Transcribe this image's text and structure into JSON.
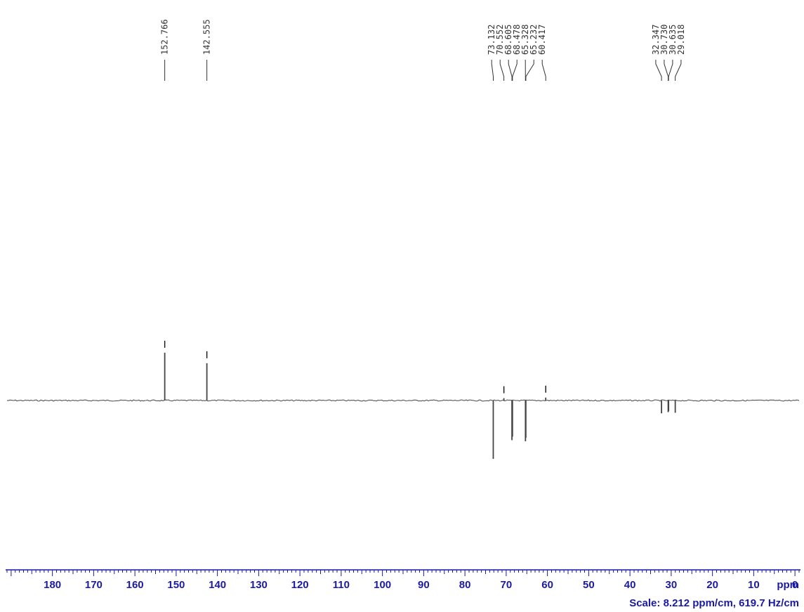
{
  "colors": {
    "spectrum": "#444444",
    "axis": "#1a1aa6",
    "labels": "#333333"
  },
  "chart_data": {
    "type": "line",
    "spectrum_type": "13C DEPT-135 NMR",
    "xlabel": "ppm",
    "x_reversed": true,
    "xlim": [
      191,
      -1
    ],
    "x_ticks": [
      180,
      170,
      160,
      150,
      140,
      130,
      120,
      110,
      100,
      90,
      80,
      70,
      60,
      50,
      40,
      30,
      20,
      10,
      0
    ],
    "x_tick_labels": [
      "180",
      "170",
      "160",
      "150",
      "140",
      "130",
      "120",
      "110",
      "100",
      "90",
      "80",
      "70",
      "60",
      "50",
      "40",
      "30",
      "20",
      "10",
      "0"
    ],
    "x_unit_label": "ppm",
    "scale_text": "Scale: 8.212 ppm/cm, 619.7 Hz/cm",
    "grid": false,
    "peak_labels": [
      "152.766",
      "142.555",
      "73.132",
      "70.552",
      "68.605",
      "68.478",
      "65.328",
      "65.232",
      "60.417",
      "32.347",
      "30.730",
      "30.635",
      "29.018"
    ],
    "peaks": [
      {
        "ppm": 152.766,
        "intensity": 0.82,
        "marker": true
      },
      {
        "ppm": 142.555,
        "intensity": 0.64,
        "marker": true
      },
      {
        "ppm": 73.132,
        "intensity": -1.0,
        "marker": false
      },
      {
        "ppm": 70.552,
        "intensity": 0.04,
        "marker": true
      },
      {
        "ppm": 68.605,
        "intensity": -0.68,
        "marker": false
      },
      {
        "ppm": 68.478,
        "intensity": -0.62,
        "marker": false
      },
      {
        "ppm": 65.328,
        "intensity": -0.7,
        "marker": false
      },
      {
        "ppm": 65.232,
        "intensity": -0.64,
        "marker": false
      },
      {
        "ppm": 60.417,
        "intensity": 0.05,
        "marker": true
      },
      {
        "ppm": 32.347,
        "intensity": -0.22,
        "marker": false
      },
      {
        "ppm": 30.73,
        "intensity": -0.2,
        "marker": false
      },
      {
        "ppm": 30.635,
        "intensity": -0.18,
        "marker": false
      },
      {
        "ppm": 29.018,
        "intensity": -0.21,
        "marker": false
      }
    ]
  }
}
